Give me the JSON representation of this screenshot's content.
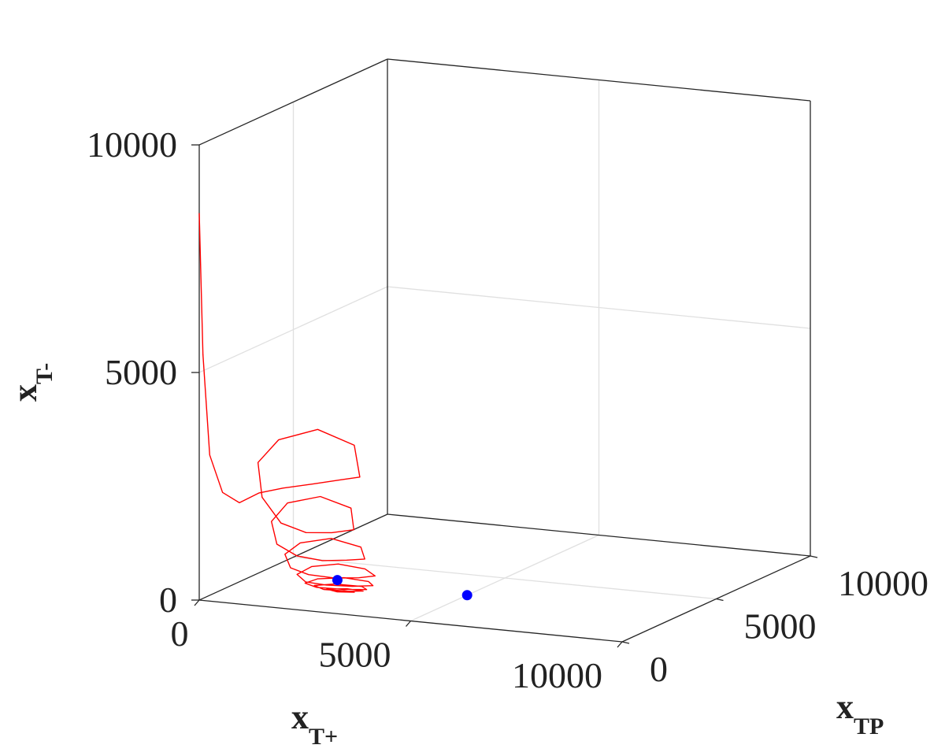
{
  "chart_data": {
    "type": "line3d",
    "axes": {
      "x": {
        "label_main": "x",
        "label_sub": "T+",
        "lim": [
          0,
          10000
        ],
        "ticks": [
          "0",
          "5000",
          "10000"
        ]
      },
      "y": {
        "label_main": "x",
        "label_sub": "TP",
        "lim": [
          0,
          10000
        ],
        "ticks": [
          "0",
          "5000",
          "10000"
        ]
      },
      "z": {
        "label_main": "x",
        "label_sub": "T-",
        "lim": [
          0,
          10000
        ],
        "ticks": [
          "0",
          "5000",
          "10000"
        ]
      }
    },
    "grid": true,
    "series": [
      {
        "kind": "trajectory",
        "color": "#ff0000",
        "points": [
          [
            0,
            0,
            8500
          ],
          [
            80,
            15,
            5400
          ],
          [
            230,
            40,
            3200
          ],
          [
            520,
            70,
            2400
          ],
          [
            900,
            110,
            2200
          ],
          [
            1350,
            150,
            2450
          ],
          [
            1900,
            180,
            2600
          ],
          [
            2600,
            200,
            2750
          ],
          [
            3250,
            210,
            2900
          ],
          [
            3700,
            220,
            3000
          ],
          [
            3400,
            600,
            3600
          ],
          [
            2400,
            900,
            3800
          ],
          [
            1500,
            850,
            3500
          ],
          [
            1100,
            650,
            3000
          ],
          [
            1300,
            420,
            2300
          ],
          [
            1800,
            300,
            1800
          ],
          [
            2400,
            280,
            1650
          ],
          [
            3000,
            300,
            1700
          ],
          [
            3500,
            350,
            1800
          ],
          [
            3300,
            650,
            2200
          ],
          [
            2500,
            820,
            2350
          ],
          [
            1750,
            760,
            2150
          ],
          [
            1450,
            580,
            1750
          ],
          [
            1650,
            420,
            1300
          ],
          [
            2150,
            360,
            1100
          ],
          [
            2750,
            370,
            1050
          ],
          [
            3300,
            420,
            1100
          ],
          [
            3700,
            480,
            1150
          ],
          [
            3500,
            720,
            1350
          ],
          [
            2750,
            830,
            1450
          ],
          [
            2050,
            760,
            1300
          ],
          [
            1750,
            620,
            1050
          ],
          [
            1950,
            470,
            800
          ],
          [
            2400,
            420,
            700
          ],
          [
            3000,
            430,
            680
          ],
          [
            3550,
            500,
            720
          ],
          [
            3900,
            580,
            780
          ],
          [
            3600,
            720,
            880
          ],
          [
            2950,
            760,
            920
          ],
          [
            2350,
            700,
            820
          ],
          [
            2050,
            590,
            640
          ],
          [
            2300,
            480,
            520
          ],
          [
            2800,
            460,
            500
          ],
          [
            3400,
            500,
            520
          ],
          [
            3850,
            580,
            560
          ],
          [
            3700,
            680,
            620
          ],
          [
            3100,
            720,
            640
          ],
          [
            2500,
            660,
            570
          ],
          [
            2250,
            570,
            470
          ],
          [
            2550,
            500,
            420
          ],
          [
            3150,
            510,
            430
          ],
          [
            3700,
            580,
            460
          ],
          [
            3550,
            660,
            500
          ],
          [
            2900,
            680,
            490
          ],
          [
            2450,
            610,
            430
          ],
          [
            2700,
            540,
            380
          ],
          [
            3300,
            560,
            390
          ],
          [
            3600,
            620,
            410
          ],
          [
            3200,
            650,
            420
          ],
          [
            2750,
            600,
            380
          ],
          [
            3000,
            570,
            350
          ],
          [
            3400,
            600,
            370
          ],
          [
            3150,
            620,
            380
          ],
          [
            2950,
            590,
            360
          ]
        ]
      },
      {
        "kind": "marker",
        "color": "#0000ff",
        "points": [
          [
            3000,
            600,
            600
          ],
          [
            5000,
            3000,
            0
          ]
        ]
      }
    ]
  }
}
